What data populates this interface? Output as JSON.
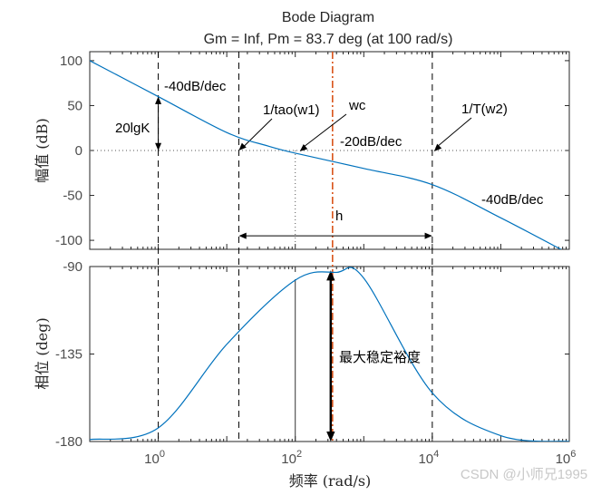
{
  "chart_data": [
    {
      "type": "line",
      "panel": "magnitude",
      "title": "Bode Diagram",
      "subtitle": "Gm = Inf,  Pm = 83.7 deg (at 100 rad/s)",
      "xlabel": "频率  (rad/s)",
      "ylabel": "幅值 (dB)",
      "xscale": "log",
      "xlim": [
        0.1,
        1000000
      ],
      "ylim": [
        -110,
        110
      ],
      "yticks": [
        100,
        50,
        0,
        -50,
        -100
      ],
      "x": [
        0.1,
        1,
        10,
        40,
        100,
        1000,
        10000,
        100000,
        1000000
      ],
      "y": [
        100,
        60,
        20,
        5,
        -3,
        -20,
        -38,
        -75,
        -115
      ],
      "line_color": "#0072bd",
      "annotations": [
        "-40dB/dec",
        "20lgK",
        "1/tao(w1)",
        "wc",
        "-20dB/dec",
        "1/T(w2)",
        "-40dB/dec",
        "h"
      ]
    },
    {
      "type": "line",
      "panel": "phase",
      "ylabel": "相位 (deg)",
      "xscale": "log",
      "xlim": [
        0.1,
        1000000
      ],
      "ylim": [
        -180,
        -90
      ],
      "yticks": [
        -90,
        -135,
        -180
      ],
      "xticks": [
        "10^0",
        "10^2",
        "10^4",
        "10^6"
      ],
      "xtick_values": [
        1,
        100,
        10000,
        1000000
      ],
      "x": [
        0.1,
        1,
        10,
        100,
        400,
        1000,
        10000,
        100000,
        1000000
      ],
      "y": [
        -179,
        -173,
        -130,
        -97,
        -93,
        -96,
        -155,
        -177,
        -180
      ],
      "line_color": "#0072bd",
      "annotations": [
        "最大稳定裕度"
      ]
    }
  ],
  "watermark": "CSDN @小师兄1995",
  "colors": {
    "curve": "#0072bd",
    "wc_line": "#d95319",
    "axes": "#262626",
    "grid": "#888888"
  }
}
